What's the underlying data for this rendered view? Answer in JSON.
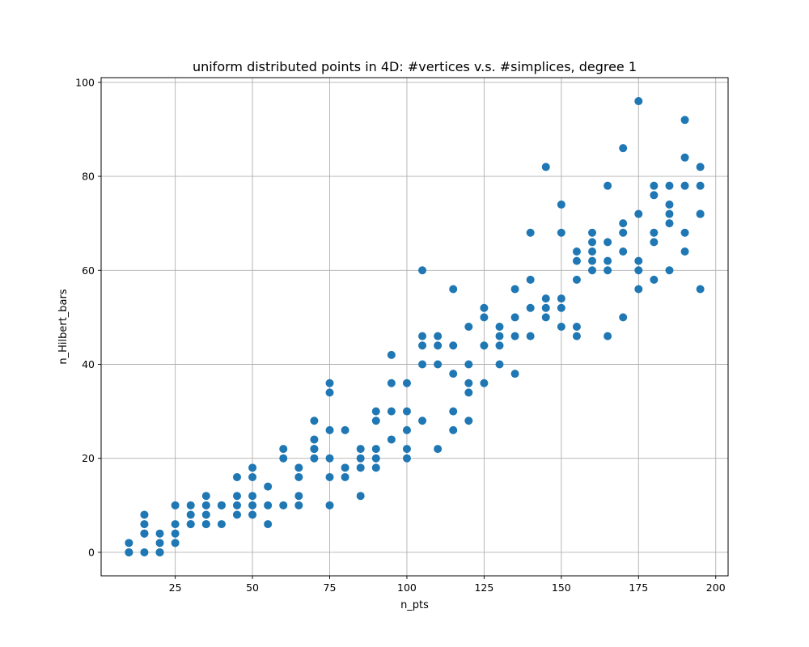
{
  "chart_data": {
    "type": "scatter",
    "title": "uniform distributed points in 4D: #vertices v.s. #simplices, degree 1",
    "xlabel": "n_pts",
    "ylabel": "n_Hilbert_bars",
    "xlim": [
      1,
      204
    ],
    "ylim": [
      -5,
      101
    ],
    "xticks": [
      25,
      50,
      75,
      100,
      125,
      150,
      175,
      200
    ],
    "yticks": [
      0,
      20,
      40,
      60,
      80,
      100
    ],
    "grid": true,
    "marker_color": "#1f77b4",
    "points": [
      [
        10,
        0
      ],
      [
        10,
        0
      ],
      [
        10,
        2
      ],
      [
        15,
        0
      ],
      [
        15,
        4
      ],
      [
        15,
        4
      ],
      [
        15,
        6
      ],
      [
        15,
        8
      ],
      [
        20,
        0
      ],
      [
        20,
        0
      ],
      [
        20,
        2
      ],
      [
        20,
        4
      ],
      [
        25,
        2
      ],
      [
        25,
        4
      ],
      [
        25,
        6
      ],
      [
        25,
        10
      ],
      [
        30,
        6
      ],
      [
        30,
        6
      ],
      [
        30,
        8
      ],
      [
        30,
        10
      ],
      [
        35,
        6
      ],
      [
        35,
        6
      ],
      [
        35,
        8
      ],
      [
        35,
        10
      ],
      [
        35,
        12
      ],
      [
        40,
        6
      ],
      [
        40,
        10
      ],
      [
        40,
        10
      ],
      [
        45,
        8
      ],
      [
        45,
        10
      ],
      [
        45,
        12
      ],
      [
        45,
        16
      ],
      [
        50,
        8
      ],
      [
        50,
        10
      ],
      [
        50,
        12
      ],
      [
        50,
        16
      ],
      [
        50,
        18
      ],
      [
        55,
        6
      ],
      [
        55,
        10
      ],
      [
        55,
        14
      ],
      [
        60,
        10
      ],
      [
        60,
        20
      ],
      [
        60,
        22
      ],
      [
        65,
        10
      ],
      [
        65,
        12
      ],
      [
        65,
        16
      ],
      [
        65,
        18
      ],
      [
        70,
        20
      ],
      [
        70,
        22
      ],
      [
        70,
        22
      ],
      [
        70,
        24
      ],
      [
        70,
        28
      ],
      [
        75,
        10
      ],
      [
        75,
        16
      ],
      [
        75,
        20
      ],
      [
        75,
        26
      ],
      [
        75,
        34
      ],
      [
        75,
        36
      ],
      [
        80,
        16
      ],
      [
        80,
        18
      ],
      [
        80,
        26
      ],
      [
        85,
        12
      ],
      [
        85,
        18
      ],
      [
        85,
        20
      ],
      [
        85,
        22
      ],
      [
        90,
        18
      ],
      [
        90,
        20
      ],
      [
        90,
        22
      ],
      [
        90,
        28
      ],
      [
        90,
        30
      ],
      [
        95,
        24
      ],
      [
        95,
        30
      ],
      [
        95,
        36
      ],
      [
        95,
        42
      ],
      [
        100,
        20
      ],
      [
        100,
        22
      ],
      [
        100,
        26
      ],
      [
        100,
        30
      ],
      [
        100,
        36
      ],
      [
        105,
        28
      ],
      [
        105,
        40
      ],
      [
        105,
        44
      ],
      [
        105,
        46
      ],
      [
        105,
        60
      ],
      [
        110,
        22
      ],
      [
        110,
        40
      ],
      [
        110,
        44
      ],
      [
        110,
        46
      ],
      [
        115,
        26
      ],
      [
        115,
        30
      ],
      [
        115,
        38
      ],
      [
        115,
        44
      ],
      [
        115,
        56
      ],
      [
        120,
        28
      ],
      [
        120,
        34
      ],
      [
        120,
        36
      ],
      [
        120,
        40
      ],
      [
        120,
        48
      ],
      [
        125,
        36
      ],
      [
        125,
        44
      ],
      [
        125,
        50
      ],
      [
        125,
        52
      ],
      [
        130,
        40
      ],
      [
        130,
        44
      ],
      [
        130,
        46
      ],
      [
        130,
        48
      ],
      [
        135,
        38
      ],
      [
        135,
        46
      ],
      [
        135,
        50
      ],
      [
        135,
        56
      ],
      [
        140,
        46
      ],
      [
        140,
        52
      ],
      [
        140,
        58
      ],
      [
        140,
        68
      ],
      [
        145,
        50
      ],
      [
        145,
        52
      ],
      [
        145,
        54
      ],
      [
        145,
        82
      ],
      [
        150,
        48
      ],
      [
        150,
        52
      ],
      [
        150,
        54
      ],
      [
        150,
        68
      ],
      [
        150,
        74
      ],
      [
        155,
        46
      ],
      [
        155,
        48
      ],
      [
        155,
        58
      ],
      [
        155,
        62
      ],
      [
        155,
        64
      ],
      [
        160,
        60
      ],
      [
        160,
        62
      ],
      [
        160,
        64
      ],
      [
        160,
        66
      ],
      [
        160,
        68
      ],
      [
        165,
        46
      ],
      [
        165,
        60
      ],
      [
        165,
        62
      ],
      [
        165,
        66
      ],
      [
        165,
        78
      ],
      [
        170,
        50
      ],
      [
        170,
        64
      ],
      [
        170,
        68
      ],
      [
        170,
        70
      ],
      [
        170,
        86
      ],
      [
        175,
        56
      ],
      [
        175,
        60
      ],
      [
        175,
        62
      ],
      [
        175,
        72
      ],
      [
        175,
        96
      ],
      [
        180,
        58
      ],
      [
        180,
        66
      ],
      [
        180,
        68
      ],
      [
        180,
        76
      ],
      [
        180,
        78
      ],
      [
        185,
        60
      ],
      [
        185,
        70
      ],
      [
        185,
        72
      ],
      [
        185,
        74
      ],
      [
        185,
        78
      ],
      [
        190,
        64
      ],
      [
        190,
        68
      ],
      [
        190,
        78
      ],
      [
        190,
        84
      ],
      [
        190,
        92
      ],
      [
        195,
        56
      ],
      [
        195,
        72
      ],
      [
        195,
        72
      ],
      [
        195,
        78
      ],
      [
        195,
        82
      ]
    ]
  }
}
